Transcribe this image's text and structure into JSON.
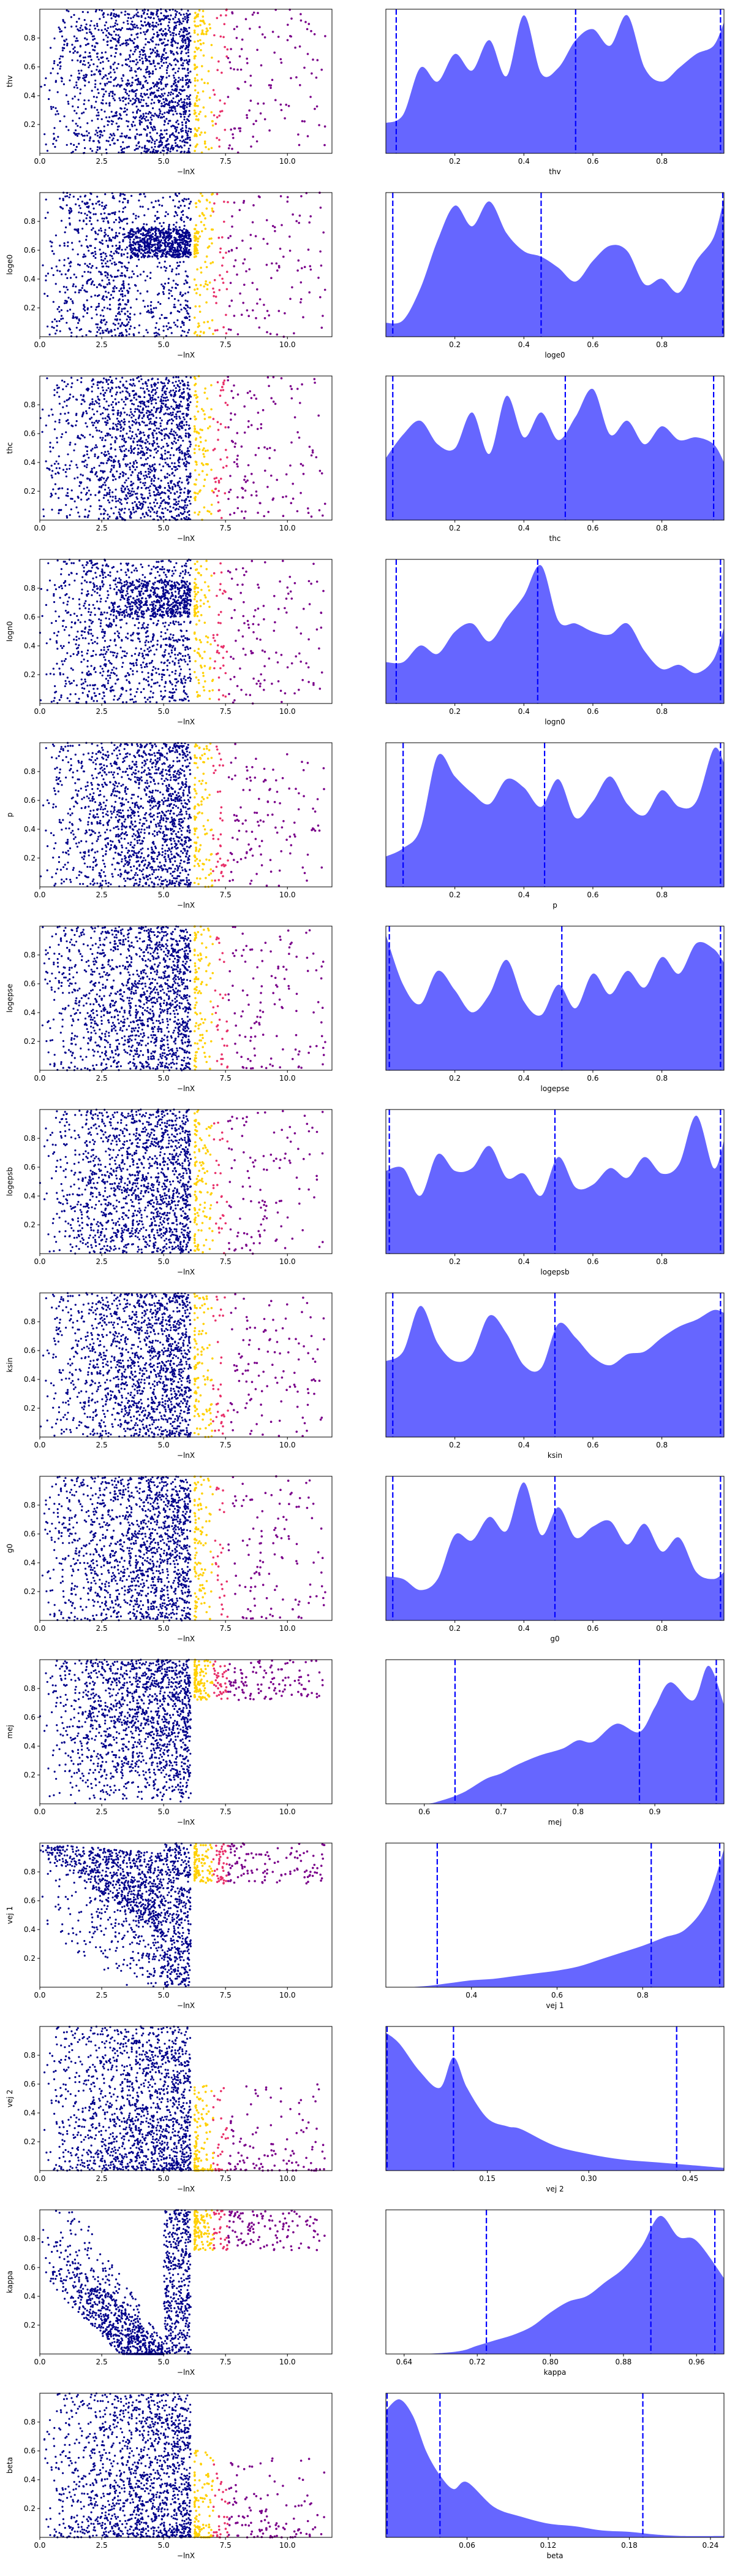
{
  "figure": {
    "scatter_xlabel": "−lnX",
    "scatter_xticks": [
      0.0,
      2.5,
      5.0,
      7.5,
      10.0
    ],
    "scatter_xtick_labels": [
      "0.0",
      "2.5",
      "5.0",
      "7.5",
      "10.0"
    ],
    "scatter_yticks": [
      0.2,
      0.4,
      0.6,
      0.8
    ],
    "scatter_ytick_labels": [
      "0.2",
      "0.4",
      "0.6",
      "0.8"
    ],
    "scatter_colors": {
      "live": "#00008b",
      "dead_low": "#ffd000",
      "dead_mid": "#e8306a",
      "dead_high": "#7a008a"
    },
    "density_fill": "#0000ff",
    "density_fill_opacity": 0.6,
    "quantile_line_color": "#0000ff"
  },
  "chart_data": [
    {
      "type": "scatter",
      "param": "thv",
      "ylabel": "thv",
      "xlabel": "−lnX",
      "xlim": [
        0,
        11.8
      ],
      "ylim": [
        0,
        1
      ],
      "pattern": "uniform",
      "grid": false
    },
    {
      "type": "area",
      "param": "thv",
      "xlabel": "thv",
      "xlim": [
        0.0,
        0.98
      ],
      "xticks": [
        0.2,
        0.4,
        0.6,
        0.8
      ],
      "xtick_labels": [
        "0.2",
        "0.4",
        "0.6",
        "0.8"
      ],
      "quantiles": [
        0.03,
        0.55,
        0.97
      ],
      "x": [
        0.0,
        0.05,
        0.1,
        0.15,
        0.2,
        0.25,
        0.3,
        0.35,
        0.4,
        0.45,
        0.5,
        0.55,
        0.6,
        0.65,
        0.7,
        0.75,
        0.8,
        0.85,
        0.9,
        0.95,
        0.98
      ],
      "y": [
        0.22,
        0.28,
        0.62,
        0.52,
        0.72,
        0.6,
        0.82,
        0.56,
        1.0,
        0.58,
        0.62,
        0.82,
        0.9,
        0.78,
        1.0,
        0.62,
        0.52,
        0.62,
        0.72,
        0.78,
        0.95
      ]
    },
    {
      "type": "scatter",
      "param": "loge0",
      "ylabel": "loge0",
      "xlabel": "−lnX",
      "xlim": [
        0,
        11.8
      ],
      "ylim": [
        0,
        1
      ],
      "pattern": "band_high",
      "grid": false
    },
    {
      "type": "area",
      "param": "loge0",
      "xlabel": "loge0",
      "xlim": [
        0.0,
        0.98
      ],
      "xticks": [
        0.2,
        0.4,
        0.6,
        0.8
      ],
      "xtick_labels": [
        "0.2",
        "0.4",
        "0.6",
        "0.8"
      ],
      "quantiles": [
        0.02,
        0.45,
        0.98
      ],
      "x": [
        0.0,
        0.05,
        0.1,
        0.15,
        0.2,
        0.25,
        0.3,
        0.35,
        0.4,
        0.45,
        0.5,
        0.55,
        0.6,
        0.65,
        0.7,
        0.75,
        0.8,
        0.85,
        0.9,
        0.95,
        0.98
      ],
      "y": [
        0.1,
        0.12,
        0.35,
        0.7,
        0.95,
        0.8,
        0.98,
        0.75,
        0.62,
        0.58,
        0.5,
        0.4,
        0.55,
        0.66,
        0.62,
        0.38,
        0.42,
        0.32,
        0.55,
        0.72,
        1.0
      ]
    },
    {
      "type": "scatter",
      "param": "thc",
      "ylabel": "thc",
      "xlabel": "−lnX",
      "xlim": [
        0,
        11.8
      ],
      "ylim": [
        0,
        1
      ],
      "pattern": "uniform",
      "grid": false
    },
    {
      "type": "area",
      "param": "thc",
      "xlabel": "thc",
      "xlim": [
        0.0,
        0.98
      ],
      "xticks": [
        0.2,
        0.4,
        0.6,
        0.8
      ],
      "xtick_labels": [
        "0.2",
        "0.4",
        "0.6",
        "0.8"
      ],
      "quantiles": [
        0.02,
        0.52,
        0.95
      ],
      "x": [
        0.0,
        0.05,
        0.1,
        0.15,
        0.2,
        0.25,
        0.3,
        0.35,
        0.4,
        0.45,
        0.5,
        0.55,
        0.6,
        0.65,
        0.7,
        0.75,
        0.8,
        0.85,
        0.9,
        0.95,
        0.98
      ],
      "y": [
        0.45,
        0.62,
        0.72,
        0.55,
        0.52,
        0.78,
        0.48,
        0.9,
        0.6,
        0.78,
        0.58,
        0.75,
        0.95,
        0.62,
        0.72,
        0.55,
        0.68,
        0.58,
        0.6,
        0.55,
        0.42
      ]
    },
    {
      "type": "scatter",
      "param": "logn0",
      "ylabel": "logn0",
      "xlabel": "−lnX",
      "xlim": [
        0,
        11.8
      ],
      "ylim": [
        0,
        1
      ],
      "pattern": "band_high_weak",
      "grid": false
    },
    {
      "type": "area",
      "param": "logn0",
      "xlabel": "logn0",
      "xlim": [
        0.0,
        0.98
      ],
      "xticks": [
        0.2,
        0.4,
        0.6,
        0.8
      ],
      "xtick_labels": [
        "0.2",
        "0.4",
        "0.6",
        "0.8"
      ],
      "quantiles": [
        0.03,
        0.44,
        0.97
      ],
      "x": [
        0.0,
        0.05,
        0.1,
        0.15,
        0.2,
        0.25,
        0.3,
        0.35,
        0.4,
        0.45,
        0.5,
        0.55,
        0.6,
        0.65,
        0.7,
        0.75,
        0.8,
        0.85,
        0.9,
        0.95,
        0.98
      ],
      "y": [
        0.3,
        0.3,
        0.42,
        0.36,
        0.52,
        0.58,
        0.45,
        0.62,
        0.78,
        1.0,
        0.6,
        0.58,
        0.52,
        0.5,
        0.58,
        0.38,
        0.25,
        0.28,
        0.22,
        0.32,
        0.55
      ]
    },
    {
      "type": "scatter",
      "param": "p",
      "ylabel": "p",
      "xlabel": "−lnX",
      "xlim": [
        0,
        11.8
      ],
      "ylim": [
        0,
        1
      ],
      "pattern": "uniform",
      "grid": false
    },
    {
      "type": "area",
      "param": "p",
      "xlabel": "p",
      "xlim": [
        0.0,
        0.98
      ],
      "xticks": [
        0.2,
        0.4,
        0.6,
        0.8
      ],
      "xtick_labels": [
        "0.2",
        "0.4",
        "0.6",
        "0.8"
      ],
      "quantiles": [
        0.05,
        0.46,
        0.97
      ],
      "x": [
        0.0,
        0.05,
        0.1,
        0.15,
        0.2,
        0.25,
        0.3,
        0.35,
        0.4,
        0.45,
        0.5,
        0.55,
        0.6,
        0.65,
        0.7,
        0.75,
        0.8,
        0.85,
        0.9,
        0.95,
        0.98
      ],
      "y": [
        0.22,
        0.28,
        0.42,
        0.95,
        0.8,
        0.68,
        0.6,
        0.78,
        0.72,
        0.58,
        0.78,
        0.5,
        0.62,
        0.8,
        0.6,
        0.52,
        0.7,
        0.58,
        0.62,
        1.0,
        0.9
      ]
    },
    {
      "type": "scatter",
      "param": "logepse",
      "ylabel": "logepse",
      "xlabel": "−lnX",
      "xlim": [
        0,
        11.8
      ],
      "ylim": [
        0,
        1
      ],
      "pattern": "uniform",
      "grid": false
    },
    {
      "type": "area",
      "param": "logepse",
      "xlabel": "logepse",
      "xlim": [
        0.0,
        0.98
      ],
      "xticks": [
        0.2,
        0.4,
        0.6,
        0.8
      ],
      "xtick_labels": [
        "0.2",
        "0.4",
        "0.6",
        "0.8"
      ],
      "quantiles": [
        0.01,
        0.51,
        0.97
      ],
      "x": [
        0.0,
        0.05,
        0.1,
        0.15,
        0.2,
        0.25,
        0.3,
        0.35,
        0.4,
        0.45,
        0.5,
        0.55,
        0.6,
        0.65,
        0.7,
        0.75,
        0.8,
        0.85,
        0.9,
        0.95,
        0.98
      ],
      "y": [
        0.98,
        0.62,
        0.48,
        0.72,
        0.58,
        0.42,
        0.55,
        0.8,
        0.5,
        0.4,
        0.62,
        0.45,
        0.7,
        0.55,
        0.72,
        0.6,
        0.82,
        0.7,
        0.92,
        0.88,
        0.78
      ]
    },
    {
      "type": "scatter",
      "param": "logepsb",
      "ylabel": "logepsb",
      "xlabel": "−lnX",
      "xlim": [
        0,
        11.8
      ],
      "ylim": [
        0,
        1
      ],
      "pattern": "uniform",
      "grid": false
    },
    {
      "type": "area",
      "param": "logepsb",
      "xlabel": "logepsb",
      "xlim": [
        0.0,
        0.98
      ],
      "xticks": [
        0.2,
        0.4,
        0.6,
        0.8
      ],
      "xtick_labels": [
        "0.2",
        "0.4",
        "0.6",
        "0.8"
      ],
      "quantiles": [
        0.01,
        0.49,
        0.97
      ],
      "x": [
        0.0,
        0.05,
        0.1,
        0.15,
        0.2,
        0.25,
        0.3,
        0.35,
        0.4,
        0.45,
        0.5,
        0.55,
        0.6,
        0.65,
        0.7,
        0.75,
        0.8,
        0.85,
        0.9,
        0.95,
        0.98
      ],
      "y": [
        0.6,
        0.62,
        0.42,
        0.72,
        0.6,
        0.62,
        0.78,
        0.55,
        0.58,
        0.42,
        0.7,
        0.48,
        0.5,
        0.62,
        0.55,
        0.7,
        0.58,
        0.65,
        1.0,
        0.62,
        0.82
      ]
    },
    {
      "type": "scatter",
      "param": "ksin",
      "ylabel": "ksin",
      "xlabel": "−lnX",
      "xlim": [
        0,
        11.8
      ],
      "ylim": [
        0,
        1
      ],
      "pattern": "uniform",
      "grid": false
    },
    {
      "type": "area",
      "param": "ksin",
      "xlabel": "ksin",
      "xlim": [
        0.0,
        0.98
      ],
      "xticks": [
        0.2,
        0.4,
        0.6,
        0.8
      ],
      "xtick_labels": [
        "0.2",
        "0.4",
        "0.6",
        "0.8"
      ],
      "quantiles": [
        0.02,
        0.49,
        0.97
      ],
      "x": [
        0.0,
        0.05,
        0.1,
        0.15,
        0.2,
        0.25,
        0.3,
        0.35,
        0.4,
        0.45,
        0.5,
        0.55,
        0.6,
        0.65,
        0.7,
        0.75,
        0.8,
        0.85,
        0.9,
        0.95,
        0.98
      ],
      "y": [
        0.55,
        0.62,
        0.95,
        0.68,
        0.55,
        0.6,
        0.88,
        0.75,
        0.52,
        0.5,
        0.82,
        0.72,
        0.58,
        0.52,
        0.6,
        0.62,
        0.72,
        0.8,
        0.85,
        0.92,
        0.9
      ]
    },
    {
      "type": "scatter",
      "param": "g0",
      "ylabel": "g0",
      "xlabel": "−lnX",
      "xlim": [
        0,
        11.8
      ],
      "ylim": [
        0,
        1
      ],
      "pattern": "uniform",
      "grid": false
    },
    {
      "type": "area",
      "param": "g0",
      "xlabel": "g0",
      "xlim": [
        0.0,
        0.98
      ],
      "xticks": [
        0.2,
        0.4,
        0.6,
        0.8
      ],
      "xtick_labels": [
        "0.2",
        "0.4",
        "0.6",
        "0.8"
      ],
      "quantiles": [
        0.02,
        0.49,
        0.97
      ],
      "x": [
        0.0,
        0.05,
        0.1,
        0.15,
        0.2,
        0.25,
        0.3,
        0.35,
        0.4,
        0.45,
        0.5,
        0.55,
        0.6,
        0.65,
        0.7,
        0.75,
        0.8,
        0.85,
        0.9,
        0.95,
        0.98
      ],
      "y": [
        0.32,
        0.3,
        0.22,
        0.3,
        0.62,
        0.58,
        0.75,
        0.65,
        1.0,
        0.62,
        0.82,
        0.6,
        0.68,
        0.72,
        0.55,
        0.7,
        0.5,
        0.6,
        0.35,
        0.3,
        0.35
      ]
    },
    {
      "type": "scatter",
      "param": "mej",
      "ylabel": "mej",
      "xlabel": "−lnX",
      "xlim": [
        0,
        11.8
      ],
      "ylim": [
        0,
        1
      ],
      "pattern": "band_top_dense",
      "grid": false
    },
    {
      "type": "area",
      "param": "mej",
      "xlabel": "mej",
      "xlim": [
        0.55,
        0.99
      ],
      "xticks": [
        0.6,
        0.7,
        0.8,
        0.9
      ],
      "xtick_labels": [
        "0.6",
        "0.7",
        "0.8",
        "0.9"
      ],
      "quantiles": [
        0.64,
        0.88,
        0.98
      ],
      "x": [
        0.55,
        0.6,
        0.62,
        0.65,
        0.68,
        0.7,
        0.72,
        0.75,
        0.78,
        0.8,
        0.82,
        0.85,
        0.88,
        0.9,
        0.92,
        0.95,
        0.97,
        0.99
      ],
      "y": [
        0.0,
        0.0,
        0.02,
        0.08,
        0.18,
        0.22,
        0.28,
        0.35,
        0.4,
        0.46,
        0.45,
        0.58,
        0.52,
        0.7,
        0.88,
        0.75,
        1.0,
        0.72
      ]
    },
    {
      "type": "scatter",
      "param": "vej 1",
      "ylabel": "vej 1",
      "xlabel": "−lnX",
      "xlim": [
        0,
        11.8
      ],
      "ylim": [
        0,
        1
      ],
      "pattern": "diagonal_upper",
      "grid": false
    },
    {
      "type": "area",
      "param": "vej 1",
      "xlabel": "vej 1",
      "xlim": [
        0.2,
        0.99
      ],
      "xticks": [
        0.4,
        0.6,
        0.8
      ],
      "xtick_labels": [
        "0.4",
        "0.6",
        "0.8"
      ],
      "quantiles": [
        0.32,
        0.82,
        0.98
      ],
      "x": [
        0.2,
        0.25,
        0.3,
        0.35,
        0.4,
        0.45,
        0.5,
        0.55,
        0.6,
        0.65,
        0.7,
        0.75,
        0.8,
        0.85,
        0.9,
        0.95,
        0.99
      ],
      "y": [
        0.0,
        0.0,
        0.01,
        0.03,
        0.05,
        0.06,
        0.08,
        0.1,
        0.12,
        0.15,
        0.2,
        0.25,
        0.3,
        0.36,
        0.42,
        0.62,
        1.0
      ]
    },
    {
      "type": "scatter",
      "param": "vej 2",
      "ylabel": "vej 2",
      "xlabel": "−lnX",
      "xlim": [
        0,
        11.8
      ],
      "ylim": [
        0,
        1
      ],
      "pattern": "band_low",
      "grid": false
    },
    {
      "type": "area",
      "param": "vej 2",
      "xlabel": "vej 2",
      "xlim": [
        0.0,
        0.5
      ],
      "xticks": [
        0.15,
        0.3,
        0.45
      ],
      "xtick_labels": [
        "0.15",
        "0.30",
        "0.45"
      ],
      "quantiles": [
        0.0,
        0.1,
        0.43
      ],
      "x": [
        0.0,
        0.02,
        0.05,
        0.08,
        0.1,
        0.12,
        0.15,
        0.18,
        0.2,
        0.25,
        0.3,
        0.35,
        0.4,
        0.45,
        0.5
      ],
      "y": [
        1.0,
        0.92,
        0.72,
        0.6,
        0.82,
        0.6,
        0.38,
        0.32,
        0.3,
        0.18,
        0.12,
        0.08,
        0.06,
        0.04,
        0.02
      ]
    },
    {
      "type": "scatter",
      "param": "kappa",
      "ylabel": "kappa",
      "xlabel": "−lnX",
      "xlim": [
        0,
        11.8
      ],
      "ylim": [
        0,
        1
      ],
      "pattern": "diagonal_lower",
      "grid": false
    },
    {
      "type": "area",
      "param": "kappa",
      "xlabel": "kappa",
      "xlim": [
        0.62,
        0.99
      ],
      "xticks": [
        0.64,
        0.72,
        0.8,
        0.88,
        0.96
      ],
      "xtick_labels": [
        "0.64",
        "0.72",
        "0.80",
        "0.88",
        "0.96"
      ],
      "quantiles": [
        0.73,
        0.91,
        0.98
      ],
      "x": [
        0.62,
        0.66,
        0.7,
        0.72,
        0.74,
        0.76,
        0.78,
        0.8,
        0.82,
        0.84,
        0.86,
        0.88,
        0.9,
        0.92,
        0.94,
        0.96,
        0.99
      ],
      "y": [
        0.0,
        0.0,
        0.02,
        0.06,
        0.1,
        0.14,
        0.2,
        0.3,
        0.38,
        0.42,
        0.52,
        0.62,
        0.78,
        1.0,
        0.85,
        0.82,
        0.55
      ]
    },
    {
      "type": "scatter",
      "param": "beta",
      "ylabel": "beta",
      "xlabel": "−lnX",
      "xlim": [
        0,
        11.8
      ],
      "ylim": [
        0,
        1
      ],
      "pattern": "band_low",
      "grid": false
    },
    {
      "type": "area",
      "param": "beta",
      "xlabel": "beta",
      "xlim": [
        0.0,
        0.25
      ],
      "xticks": [
        0.06,
        0.12,
        0.18,
        0.24
      ],
      "xtick_labels": [
        "0.06",
        "0.12",
        "0.18",
        "0.24"
      ],
      "quantiles": [
        0.0,
        0.04,
        0.19
      ],
      "x": [
        0.0,
        0.01,
        0.02,
        0.03,
        0.04,
        0.05,
        0.06,
        0.08,
        0.1,
        0.12,
        0.14,
        0.16,
        0.18,
        0.2,
        0.22,
        0.25
      ],
      "y": [
        0.92,
        1.0,
        0.88,
        0.62,
        0.45,
        0.35,
        0.4,
        0.22,
        0.15,
        0.1,
        0.08,
        0.05,
        0.04,
        0.02,
        0.01,
        0.01
      ]
    }
  ]
}
